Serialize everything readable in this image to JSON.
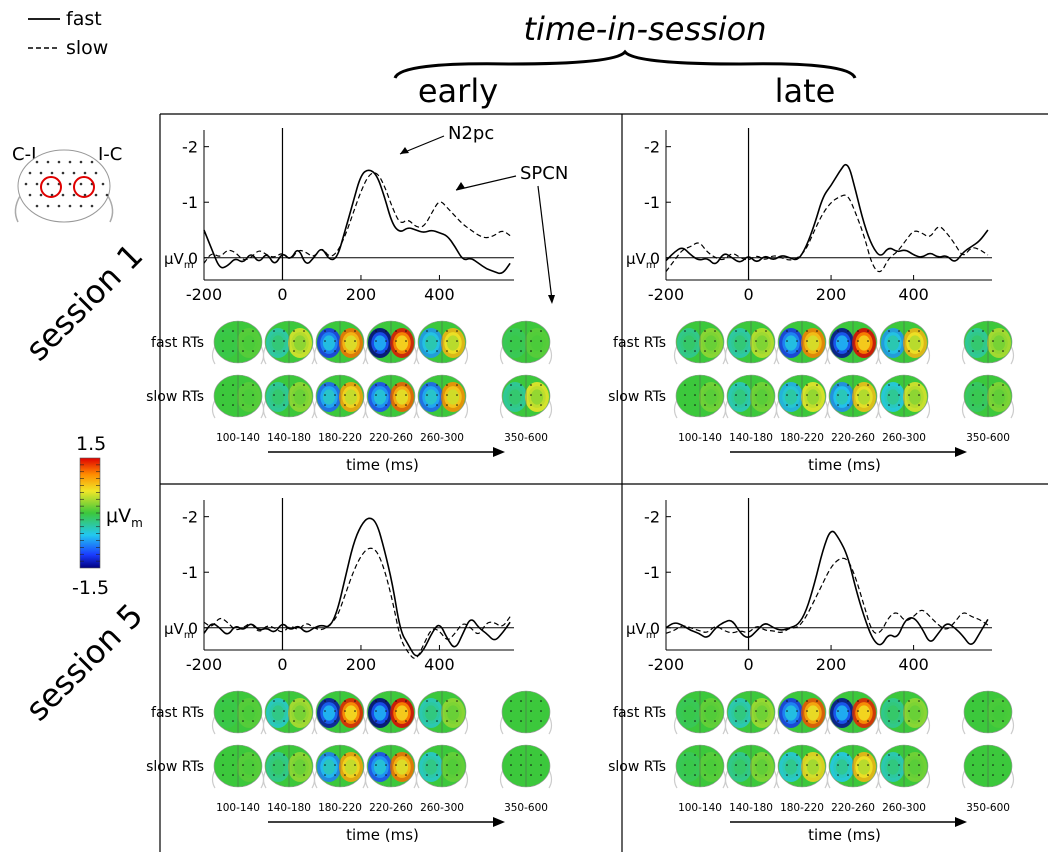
{
  "legend": {
    "fast": "fast",
    "slow": "slow"
  },
  "header": {
    "title": "time-in-session",
    "early": "early",
    "late": "late"
  },
  "rows": [
    "session 1",
    "session 5"
  ],
  "electrodes": {
    "left": "C-I",
    "right": "I-C"
  },
  "colorbar": {
    "max": "1.5",
    "min": "-1.5",
    "unit_main": "μV",
    "unit_sub": "m"
  },
  "panel_labels": {
    "unit_main": "μV",
    "unit_sub": "m",
    "fast_row": "fast RTs",
    "slow_row": "slow RTs",
    "time_axis": "time (ms)",
    "windows": [
      "100-140",
      "140-180",
      "180-220",
      "220-260",
      "260-300",
      "350-600"
    ],
    "annotations": {
      "n2pc": "N2pc",
      "spcn": "SPCN"
    }
  },
  "colors": {
    "positive": "#d7191c",
    "negative": "#1a2b9c",
    "neutral": "#3cc83c"
  },
  "chart_data": [
    {
      "type": "line",
      "panel": "session 1 / early",
      "xlabel": "",
      "ylabel": "μVm",
      "xlim": [
        -200,
        590
      ],
      "ylim": [
        -2.3,
        0.4
      ],
      "y_inverted": true,
      "xticks": [
        -200,
        0,
        200,
        400
      ],
      "yticks": [
        -2,
        -1,
        0
      ],
      "x": [
        -200,
        -180,
        -160,
        -140,
        -120,
        -100,
        -80,
        -60,
        -40,
        -20,
        0,
        20,
        40,
        60,
        80,
        100,
        120,
        140,
        160,
        180,
        200,
        220,
        240,
        260,
        280,
        300,
        320,
        340,
        360,
        380,
        400,
        420,
        440,
        460,
        480,
        500,
        520,
        540,
        560,
        580
      ],
      "series": [
        {
          "name": "fast",
          "values": [
            -0.5,
            -0.15,
            0.2,
            0.15,
            0,
            0.1,
            -0.1,
            0.1,
            -0.1,
            0.15,
            -0.1,
            0.05,
            -0.2,
            0.15,
            0,
            -0.2,
            0.05,
            0,
            -0.5,
            -1.0,
            -1.5,
            -1.6,
            -1.5,
            -1.1,
            -0.6,
            -0.45,
            -0.55,
            -0.5,
            -0.45,
            -0.5,
            -0.45,
            -0.4,
            -0.2,
            0.05,
            0,
            0.1,
            0.2,
            0.25,
            0.3,
            0.1
          ]
        },
        {
          "name": "slow",
          "values": [
            0.1,
            -0.1,
            0,
            -0.15,
            -0.1,
            0.05,
            0,
            -0.15,
            -0.05,
            0,
            -0.1,
            0.05,
            -0.15,
            -0.1,
            0,
            -0.2,
            0,
            -0.1,
            -0.4,
            -0.8,
            -1.2,
            -1.5,
            -1.55,
            -1.3,
            -0.9,
            -0.6,
            -0.7,
            -0.55,
            -0.55,
            -0.8,
            -1.05,
            -0.9,
            -0.75,
            -0.6,
            -0.5,
            -0.4,
            -0.35,
            -0.4,
            -0.5,
            -0.4
          ]
        }
      ]
    },
    {
      "type": "line",
      "panel": "session 1 / late",
      "xlabel": "",
      "ylabel": "μVm",
      "xlim": [
        -200,
        590
      ],
      "ylim": [
        -2.3,
        0.4
      ],
      "y_inverted": true,
      "xticks": [
        -200,
        0,
        200,
        400
      ],
      "yticks": [
        -2,
        -1,
        0
      ],
      "x": [
        -200,
        -180,
        -160,
        -140,
        -120,
        -100,
        -80,
        -60,
        -40,
        -20,
        0,
        20,
        40,
        60,
        80,
        100,
        120,
        140,
        160,
        180,
        200,
        220,
        240,
        260,
        280,
        300,
        320,
        340,
        360,
        380,
        400,
        420,
        440,
        460,
        480,
        500,
        520,
        540,
        560,
        580
      ],
      "series": [
        {
          "name": "fast",
          "values": [
            0.05,
            -0.1,
            -0.2,
            -0.05,
            0.05,
            0,
            0.15,
            -0.1,
            0,
            0.1,
            -0.05,
            0.1,
            -0.05,
            0.05,
            -0.05,
            0,
            0.05,
            -0.2,
            -0.6,
            -1.1,
            -1.3,
            -1.55,
            -1.75,
            -1.2,
            -0.6,
            -0.2,
            0,
            -0.2,
            -0.1,
            -0.15,
            -0.05,
            0,
            -0.1,
            0,
            -0.05,
            0.1,
            -0.1,
            -0.2,
            -0.3,
            -0.5
          ]
        },
        {
          "name": "slow",
          "values": [
            0.25,
            0.05,
            -0.15,
            -0.2,
            -0.3,
            -0.1,
            0,
            0.05,
            -0.1,
            0,
            0.05,
            -0.05,
            0.05,
            -0.05,
            0,
            0.05,
            0,
            -0.15,
            -0.5,
            -0.8,
            -1.0,
            -1.1,
            -1.15,
            -0.8,
            -0.4,
            0.15,
            0.3,
            0,
            -0.1,
            -0.3,
            -0.5,
            -0.45,
            -0.35,
            -0.6,
            -0.45,
            -0.25,
            0,
            -0.2,
            -0.15,
            -0.05
          ]
        }
      ]
    },
    {
      "type": "line",
      "panel": "session 5 / early",
      "xlabel": "",
      "ylabel": "μVm",
      "xlim": [
        -200,
        590
      ],
      "ylim": [
        -2.3,
        0.4
      ],
      "y_inverted": true,
      "xticks": [
        -200,
        0,
        200,
        400
      ],
      "yticks": [
        -2,
        -1,
        0
      ],
      "x": [
        -200,
        -180,
        -160,
        -140,
        -120,
        -100,
        -80,
        -60,
        -40,
        -20,
        0,
        20,
        40,
        60,
        80,
        100,
        120,
        140,
        160,
        180,
        200,
        220,
        240,
        260,
        280,
        300,
        320,
        340,
        360,
        380,
        400,
        420,
        440,
        460,
        480,
        500,
        520,
        540,
        560,
        580
      ],
      "series": [
        {
          "name": "fast",
          "values": [
            0.1,
            -0.1,
            0,
            0.15,
            -0.05,
            0.05,
            -0.1,
            0.05,
            0,
            0.1,
            -0.1,
            0.05,
            -0.05,
            0.1,
            0,
            -0.05,
            0,
            -0.3,
            -0.9,
            -1.5,
            -1.85,
            -2.0,
            -1.9,
            -1.4,
            -0.8,
            0.05,
            0.3,
            0.55,
            0.4,
            0.1,
            -0.1,
            0.2,
            0.4,
            0.1,
            -0.2,
            0,
            0.1,
            0.25,
            0.1,
            -0.1
          ]
        },
        {
          "name": "slow",
          "values": [
            -0.1,
            0,
            -0.2,
            -0.1,
            0.05,
            0,
            -0.1,
            0.1,
            -0.05,
            0,
            0.1,
            -0.05,
            0.05,
            -0.1,
            0,
            0.05,
            -0.05,
            -0.2,
            -0.6,
            -1.0,
            -1.3,
            -1.45,
            -1.4,
            -1.05,
            -0.5,
            0.2,
            0.45,
            0.6,
            0.3,
            0,
            0.05,
            0.25,
            0.1,
            -0.1,
            0,
            0.15,
            -0.1,
            -0.1,
            0,
            -0.2
          ]
        }
      ]
    },
    {
      "type": "line",
      "panel": "session 5 / late",
      "xlabel": "",
      "ylabel": "μVm",
      "xlim": [
        -200,
        590
      ],
      "ylim": [
        -2.3,
        0.4
      ],
      "y_inverted": true,
      "xticks": [
        -200,
        0,
        200,
        400
      ],
      "yticks": [
        -2,
        -1,
        0
      ],
      "x": [
        -200,
        -180,
        -160,
        -140,
        -120,
        -100,
        -80,
        -60,
        -40,
        -20,
        0,
        20,
        40,
        60,
        80,
        100,
        120,
        140,
        160,
        180,
        200,
        220,
        240,
        260,
        280,
        300,
        320,
        340,
        360,
        380,
        400,
        420,
        440,
        460,
        480,
        500,
        520,
        540,
        560,
        580
      ],
      "series": [
        {
          "name": "fast",
          "values": [
            0,
            -0.1,
            -0.05,
            0.05,
            0.1,
            0.2,
            0,
            -0.1,
            -0.15,
            0.1,
            0.2,
            0.05,
            -0.1,
            0,
            0.05,
            0,
            -0.05,
            -0.3,
            -0.8,
            -1.4,
            -1.8,
            -1.6,
            -1.3,
            -0.7,
            -0.2,
            0.2,
            0.35,
            0.1,
            0.2,
            -0.15,
            -0.2,
            0,
            0.3,
            0.1,
            -0.1,
            0,
            0.15,
            0.35,
            0.1,
            -0.15
          ]
        },
        {
          "name": "slow",
          "values": [
            0.1,
            0.05,
            -0.05,
            0,
            0.05,
            0.1,
            -0.05,
            0.05,
            0.1,
            0.05,
            0.1,
            -0.05,
            0.05,
            0.05,
            0.1,
            0,
            0,
            -0.2,
            -0.5,
            -0.8,
            -1.1,
            -1.25,
            -1.25,
            -0.9,
            -0.4,
            0.1,
            0.1,
            -0.2,
            -0.3,
            -0.1,
            -0.2,
            -0.35,
            -0.2,
            -0.05,
            0.05,
            -0.1,
            -0.3,
            -0.2,
            -0.15,
            -0.05
          ]
        }
      ]
    }
  ],
  "topomaps": [
    {
      "panel": "session 1 / early",
      "fast": [
        [
          -0.05,
          0.1
        ],
        [
          -0.4,
          0.55
        ],
        [
          -1.2,
          1.15
        ],
        [
          -1.5,
          1.45
        ],
        [
          -0.8,
          0.85
        ],
        [
          -0.1,
          0.1
        ]
      ],
      "slow": [
        [
          0,
          0.1
        ],
        [
          -0.35,
          0.3
        ],
        [
          -1.0,
          0.95
        ],
        [
          -1.1,
          1.2
        ],
        [
          -1.0,
          1.05
        ],
        [
          -0.35,
          0.6
        ]
      ]
    },
    {
      "panel": "session 1 / late",
      "fast": [
        [
          -0.3,
          0.3
        ],
        [
          -0.4,
          0.45
        ],
        [
          -1.2,
          1.1
        ],
        [
          -1.45,
          1.5
        ],
        [
          -0.8,
          0.85
        ],
        [
          -0.35,
          0.4
        ]
      ],
      "slow": [
        [
          0,
          0.2
        ],
        [
          -0.45,
          0.2
        ],
        [
          -0.7,
          0.6
        ],
        [
          -0.85,
          0.8
        ],
        [
          -0.6,
          0.55
        ],
        [
          -0.15,
          0.25
        ]
      ]
    },
    {
      "panel": "session 5 / early",
      "fast": [
        [
          -0.05,
          0.1
        ],
        [
          -0.5,
          0.4
        ],
        [
          -1.4,
          1.4
        ],
        [
          -1.5,
          1.5
        ],
        [
          -0.45,
          0.3
        ],
        [
          0,
          0
        ]
      ],
      "slow": [
        [
          0,
          0.1
        ],
        [
          -0.3,
          0.3
        ],
        [
          -0.9,
          0.95
        ],
        [
          -1.1,
          1.15
        ],
        [
          -0.5,
          0.15
        ],
        [
          0,
          0
        ]
      ]
    },
    {
      "panel": "session 5 / late",
      "fast": [
        [
          -0.1,
          0.15
        ],
        [
          -0.45,
          0.35
        ],
        [
          -1.2,
          1.25
        ],
        [
          -1.45,
          1.4
        ],
        [
          -0.3,
          0.3
        ],
        [
          0,
          0.05
        ]
      ],
      "slow": [
        [
          -0.1,
          0.1
        ],
        [
          -0.3,
          0.25
        ],
        [
          -0.55,
          0.7
        ],
        [
          -0.6,
          0.85
        ],
        [
          -0.45,
          0.2
        ],
        [
          0,
          0
        ]
      ]
    }
  ]
}
